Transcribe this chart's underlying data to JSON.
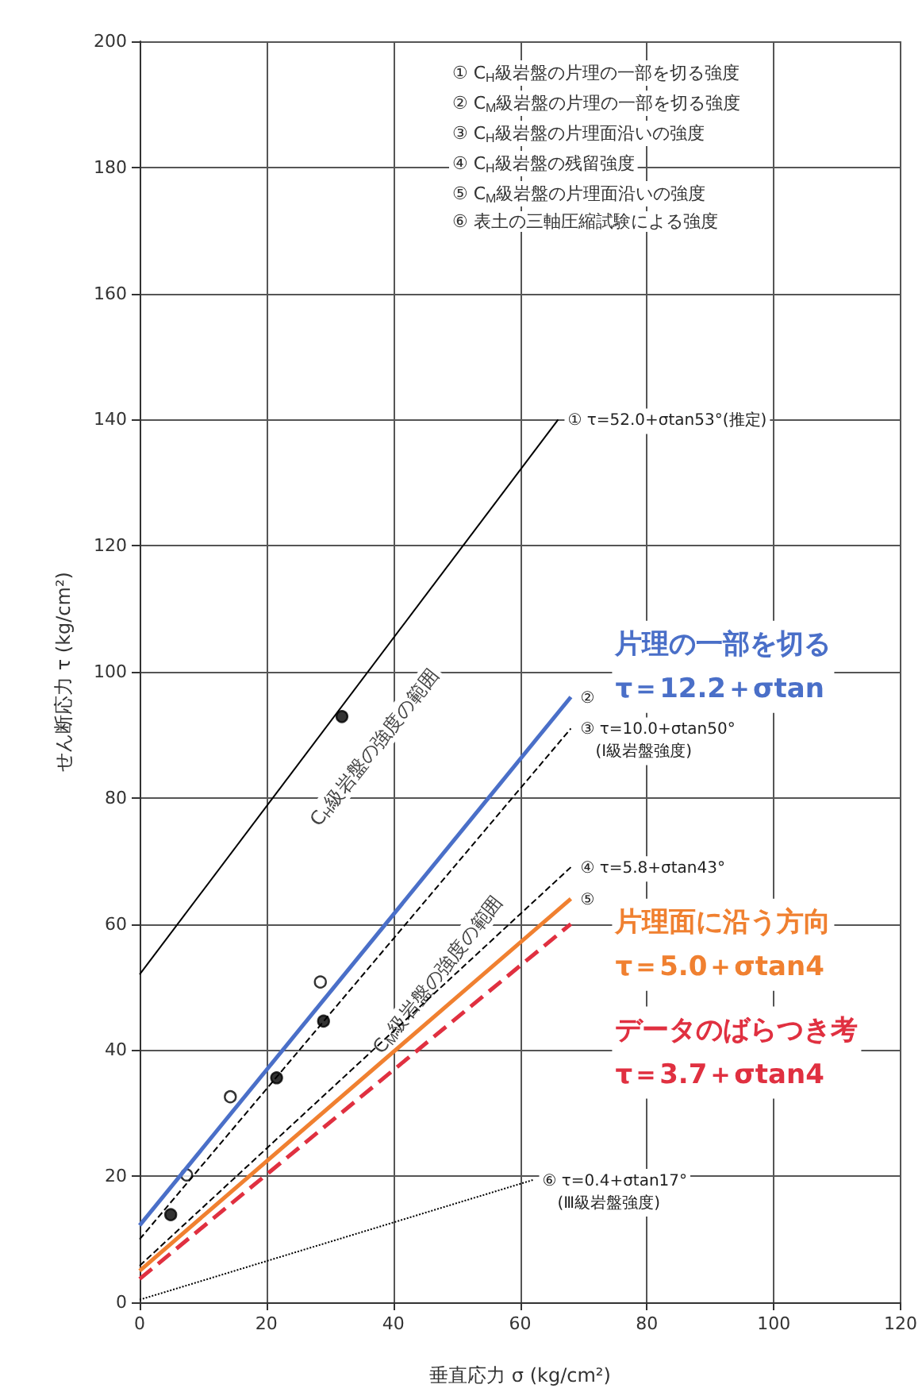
{
  "chart_data": {
    "type": "line",
    "xlabel": "垂直応力 σ (kg/cm²)",
    "ylabel": "せん断応力 τ (kg/cm²)",
    "xlim": [
      0,
      120
    ],
    "xticks": [
      0,
      20,
      40,
      60,
      80,
      100,
      120
    ],
    "ylim": [
      0,
      200
    ],
    "yticks": [
      0,
      20,
      40,
      60,
      80,
      100,
      120,
      140,
      160,
      180,
      200
    ],
    "grid": true,
    "series": [
      {
        "color": "#000000",
        "x": [
          0,
          66
        ],
        "values": [
          52,
          140
        ],
        "line_style": "solid"
      },
      {
        "name": "片理の一部を切る\nτ＝12.2＋σtan",
        "color": "#4a6fc8",
        "x": [
          0,
          68
        ],
        "values": [
          12.2,
          96
        ],
        "line_style": "solid"
      },
      {
        "color": "#000000",
        "x": [
          0,
          68
        ],
        "values": [
          10,
          91
        ],
        "line_style": "dashed"
      },
      {
        "color": "#000000",
        "x": [
          0,
          68
        ],
        "values": [
          5.8,
          69
        ],
        "line_style": "dashed"
      },
      {
        "name": "片理面に沿う方向\nτ＝5.0＋σtan4",
        "color": "#f08030",
        "x": [
          0,
          68
        ],
        "values": [
          5,
          64
        ],
        "line_style": "solid"
      },
      {
        "name": "データのばらつき考\nτ＝3.7＋σtan4",
        "color": "#e03040",
        "x": [
          0,
          68
        ],
        "values": [
          3.7,
          60
        ],
        "line_style": "dashed"
      },
      {
        "color": "#000000",
        "x": [
          0,
          62
        ],
        "values": [
          0.4,
          19.4
        ],
        "line_style": "dotted"
      },
      {
        "type": "scatter",
        "marker": "circle",
        "color": "#000000",
        "x": [
          4.9,
          21.6,
          29,
          31.9
        ],
        "values": [
          13.9,
          35.6,
          44.6,
          92.9
        ]
      },
      {
        "type": "scatter",
        "marker": "circle",
        "color": "#ffffff",
        "x": [
          7.4,
          14.3,
          28.5
        ],
        "values": [
          20.2,
          32.6,
          50.8
        ]
      }
    ],
    "annotations": [
      "① C$_{H}$級岩盤の片理の一部を切る強度",
      "② C$_{M}$級岩盤の片理の一部を切る強度",
      "③ C$_{H}$級岩盤の片理面沿いの強度",
      "④ C$_{H}$級岩盤の残留強度",
      "⑤ C$_{M}$級岩盤の片理面沿いの強度",
      "⑥ 表土の三軸圧縮試験による強度",
      "① τ=52.0+σtan53°(推定)",
      "②",
      "③ τ=10.0+σtan50°\n   (Ⅰ級岩盤強度)",
      "④ τ=5.8+σtan43°",
      "⑤",
      "⑥ τ=0.4+σtan17°\n   (Ⅲ級岩盤強度)",
      "C$_{H}$級岩盤の強度の範囲",
      "C$_{M}$級岩盤の強度の範囲"
    ]
  }
}
